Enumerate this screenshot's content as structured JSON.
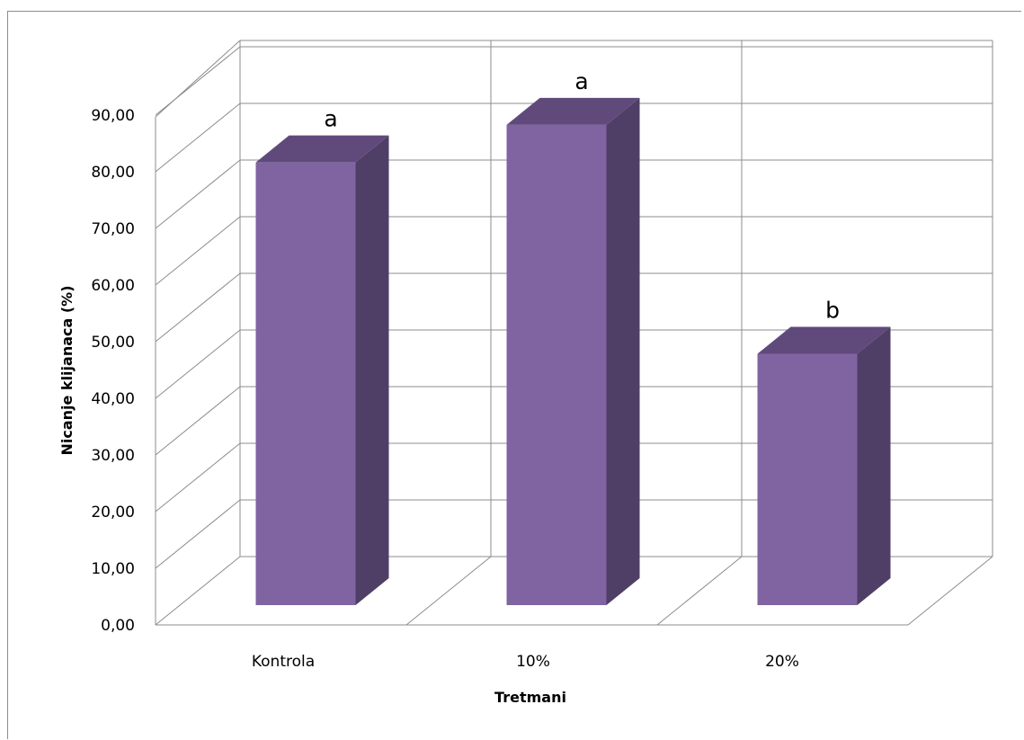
{
  "chart_data": {
    "type": "bar",
    "title": "",
    "xlabel": "Tretmani",
    "ylabel": "Nicanje klijanaca (%)",
    "categories": [
      "Kontrola",
      "10%",
      "20%"
    ],
    "values": [
      75.4,
      81.8,
      42.8
    ],
    "annotations": [
      "a",
      "a",
      "b"
    ],
    "ylim": [
      0,
      90
    ],
    "yticks": [
      "0,00",
      "10,00",
      "20,00",
      "30,00",
      "40,00",
      "50,00",
      "60,00",
      "70,00",
      "80,00",
      "90,00"
    ],
    "grid": true,
    "legend": "none",
    "colors": {
      "front": "#8064a2",
      "top": "#604a7b",
      "side": "#4f3e66",
      "grid": "#8c8c8c"
    }
  }
}
